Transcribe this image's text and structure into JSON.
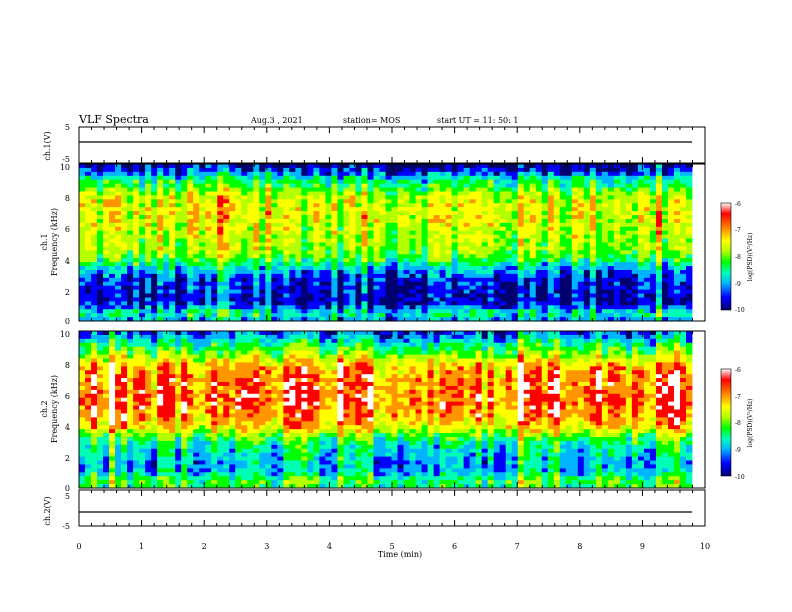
{
  "chart_data": {
    "type": "heatmap",
    "title": "VLF  Spectra",
    "date": "Aug.3  , 2021",
    "station": "station= MOS",
    "start_ut": "start  UT  =   11: 50: 1",
    "xlabel": "Time  (min)",
    "xlim": [
      0,
      10
    ],
    "xticks": [
      "0",
      "1",
      "2",
      "3",
      "4",
      "5",
      "6",
      "7",
      "8",
      "9",
      "10"
    ],
    "voltage_panels": [
      {
        "ylabel": "ch.1(V)",
        "ylim": [
          -5,
          5
        ],
        "yticks": [
          "5",
          "-5"
        ]
      },
      {
        "ylabel": "ch.2(V)",
        "ylim": [
          -5,
          5
        ],
        "yticks": [
          "5",
          "-5"
        ]
      }
    ],
    "spectrogram_panels": [
      {
        "ylabel": "ch.1\nFrequency (kHz)",
        "ylabel_parts": [
          "ch.1",
          "Frequency  (kHz)"
        ],
        "ylim": [
          0,
          10
        ],
        "yticks": [
          "0",
          "2",
          "4",
          "6",
          "8",
          "10"
        ],
        "colorbar": {
          "label": "log(PSD)(V²/Hz)",
          "range": [
            -10,
            -6
          ],
          "ticks": [
            "-6",
            "-7",
            "-8",
            "-9",
            "-10"
          ]
        },
        "frequency_profile_kHz": [
          0,
          0.5,
          1,
          1.5,
          2,
          2.5,
          3,
          3.5,
          4,
          4.5,
          5,
          5.5,
          6,
          6.5,
          7,
          7.5,
          8,
          8.5,
          9,
          9.5,
          10
        ],
        "log_psd_profile": [
          -9.2,
          -8.6,
          -9.6,
          -9.8,
          -9.7,
          -9.6,
          -9.3,
          -8.8,
          -8.2,
          -7.9,
          -7.8,
          -7.7,
          -7.6,
          -7.5,
          -7.5,
          -7.5,
          -7.7,
          -8.2,
          -8.6,
          -9.5,
          -10
        ]
      },
      {
        "ylabel": "ch.2\nFrequency (kHz)",
        "ylabel_parts": [
          "ch.2",
          "Frequency  (kHz)"
        ],
        "ylim": [
          0,
          10
        ],
        "yticks": [
          "0",
          "2",
          "4",
          "6",
          "8",
          "10"
        ],
        "colorbar": {
          "label": "log(PSD)(V²/Hz)",
          "range": [
            -10,
            -6
          ],
          "ticks": [
            "-6",
            "-7",
            "-8",
            "-9",
            "-10"
          ]
        },
        "frequency_profile_kHz": [
          0,
          0.5,
          1,
          1.5,
          2,
          2.5,
          3,
          3.5,
          4,
          4.5,
          5,
          5.5,
          6,
          6.5,
          7,
          7.5,
          8,
          8.5,
          9,
          9.5,
          10
        ],
        "log_psd_profile": [
          -8.4,
          -8.2,
          -9.0,
          -9.1,
          -8.9,
          -8.8,
          -8.5,
          -7.8,
          -7.2,
          -6.9,
          -6.8,
          -6.7,
          -6.7,
          -6.8,
          -6.8,
          -6.9,
          -7.3,
          -7.9,
          -8.4,
          -9.0,
          -9.5
        ]
      }
    ],
    "colormap": [
      "#00006e",
      "#0000ff",
      "#00b4ff",
      "#00ffb4",
      "#00ff00",
      "#b4ff00",
      "#ffff00",
      "#ff9600",
      "#ff0000",
      "#ffffff"
    ]
  }
}
